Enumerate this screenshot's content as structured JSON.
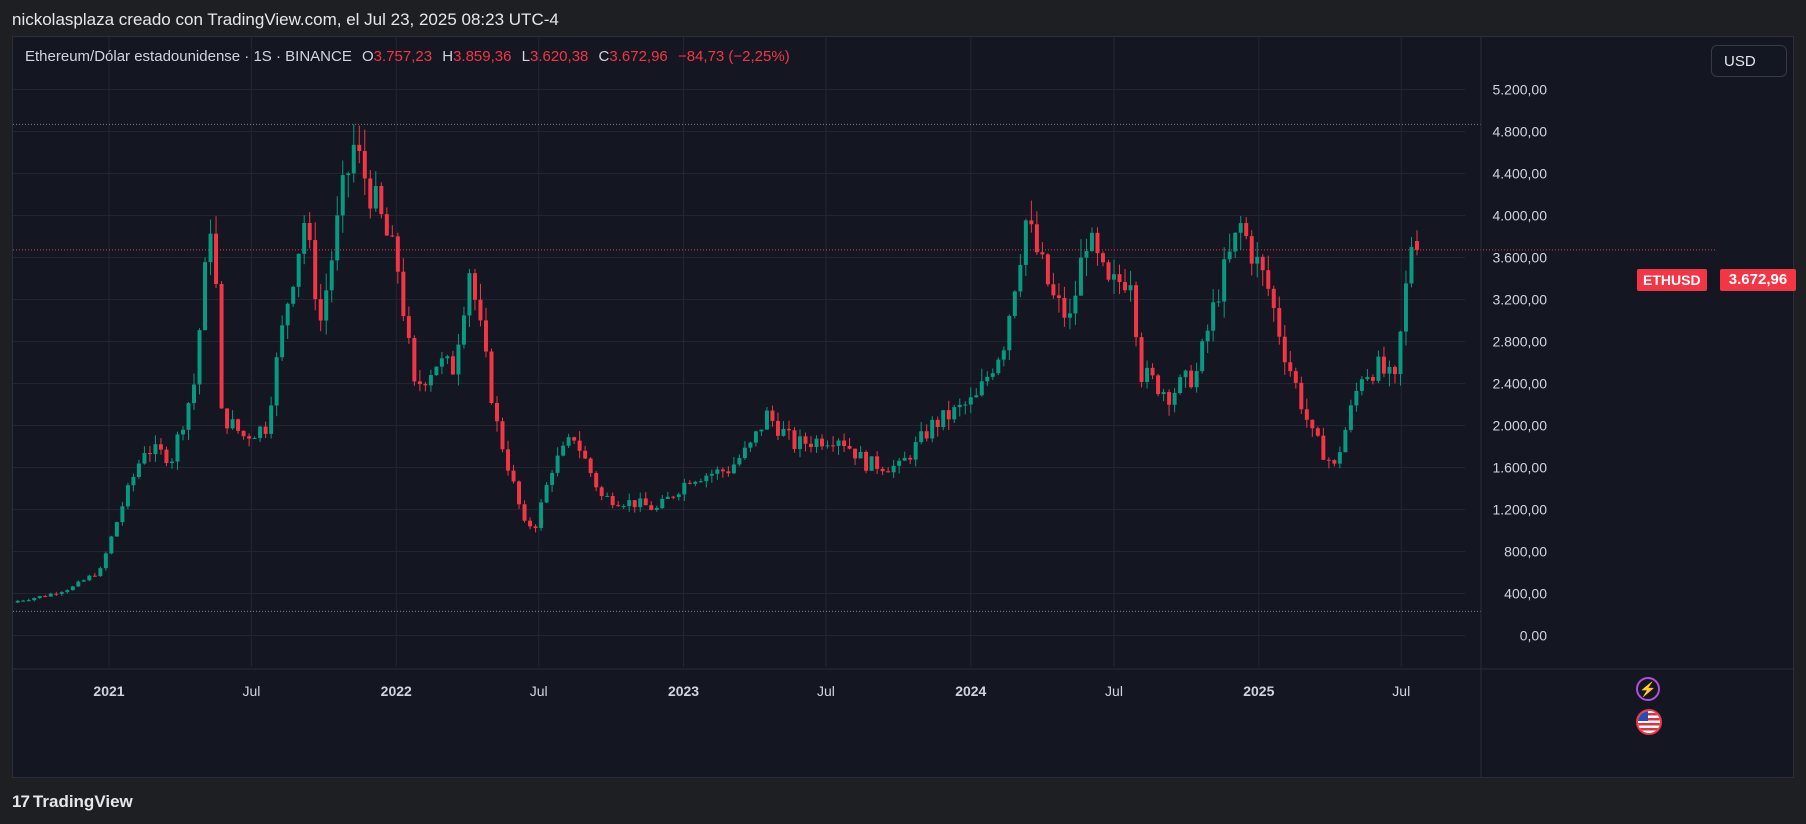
{
  "header": {
    "caption": "nickolasplaza creado con TradingView.com, el Jul 23, 2025 08:23 UTC-4"
  },
  "legend": {
    "symbol": "Ethereum/Dólar estadounidense · 1S · BINANCE",
    "open_key": "O",
    "open": "3.757,23",
    "high_key": "H",
    "high": "3.859,36",
    "low_key": "L",
    "low": "3.620,38",
    "close_key": "C",
    "close": "3.672,96",
    "change": "−84,73 (−2,25%)"
  },
  "currency_button": "USD",
  "price_tag": {
    "ticker": "ETHUSD",
    "value": "3.672,96"
  },
  "footer": {
    "logo": "17",
    "brand": "TradingView"
  },
  "icons": {
    "alert": "bolt-icon",
    "event": "us-flag-icon"
  },
  "colors": {
    "background": "#141722",
    "up": "#089981",
    "down": "#f23645",
    "grid": "#232632",
    "axis_text": "#d1d4dc",
    "accent_purple": "#b14fe0"
  },
  "chart_data": {
    "type": "candlestick",
    "title": "Ethereum/Dólar estadounidense · 1S · BINANCE",
    "xlabel": "",
    "ylabel": "",
    "ylim": [
      -300,
      5700
    ],
    "y_ticks": [
      "5.200,00",
      "4.800,00",
      "4.400,00",
      "4.000,00",
      "3.600,00",
      "3.200,00",
      "2.800,00",
      "2.400,00",
      "2.000,00",
      "1.600,00",
      "1.200,00",
      "800,00",
      "400,00",
      "0,00"
    ],
    "y_tick_values": [
      5200,
      4800,
      4400,
      4000,
      3600,
      3200,
      2800,
      2400,
      2000,
      1600,
      1200,
      800,
      400,
      0
    ],
    "x_ticks": [
      "2021",
      "Jul",
      "2022",
      "Jul",
      "2023",
      "Jul",
      "2024",
      "Jul",
      "2025",
      "Jul"
    ],
    "x_tick_dates": [
      "2021-01-01",
      "2021-07-01",
      "2022-01-01",
      "2022-07-01",
      "2023-01-01",
      "2023-07-01",
      "2024-01-01",
      "2024-07-01",
      "2025-01-01",
      "2025-07-01"
    ],
    "x_range": [
      "2020-09-01",
      "2025-09-20"
    ],
    "reference_lines": [
      4868,
      230
    ],
    "last_price": 3672.96,
    "grid": true,
    "series": [
      {
        "close_path": [
          [
            "2020-09-07",
            330
          ],
          [
            "2020-10-12",
            380
          ],
          [
            "2020-11-16",
            460
          ],
          [
            "2020-12-21",
            620
          ],
          [
            "2021-01-18",
            1240
          ],
          [
            "2021-02-15",
            1780
          ],
          [
            "2021-03-22",
            1700
          ],
          [
            "2021-04-19",
            2400
          ],
          [
            "2021-05-10",
            3950
          ],
          [
            "2021-05-17",
            3300
          ],
          [
            "2021-05-24",
            2100
          ],
          [
            "2021-06-21",
            1900
          ],
          [
            "2021-07-19",
            1990
          ],
          [
            "2021-08-16",
            3200
          ],
          [
            "2021-09-06",
            3950
          ],
          [
            "2021-09-27",
            3000
          ],
          [
            "2021-10-25",
            4200
          ],
          [
            "2021-11-08",
            4650
          ],
          [
            "2021-12-06",
            4100
          ],
          [
            "2022-01-03",
            3500
          ],
          [
            "2022-01-24",
            2350
          ],
          [
            "2022-02-21",
            2600
          ],
          [
            "2022-03-14",
            2550
          ],
          [
            "2022-04-04",
            3500
          ],
          [
            "2022-05-09",
            2000
          ],
          [
            "2022-06-13",
            1050
          ],
          [
            "2022-06-27",
            1060
          ],
          [
            "2022-07-18",
            1600
          ],
          [
            "2022-08-15",
            1900
          ],
          [
            "2022-09-19",
            1320
          ],
          [
            "2022-11-07",
            1250
          ],
          [
            "2022-11-28",
            1200
          ],
          [
            "2023-01-09",
            1500
          ],
          [
            "2023-02-27",
            1580
          ],
          [
            "2023-03-27",
            1800
          ],
          [
            "2023-04-17",
            2100
          ],
          [
            "2023-05-22",
            1820
          ],
          [
            "2023-07-17",
            1900
          ],
          [
            "2023-08-21",
            1640
          ],
          [
            "2023-10-02",
            1600
          ],
          [
            "2023-11-13",
            2000
          ],
          [
            "2024-01-08",
            2250
          ],
          [
            "2024-02-12",
            2800
          ],
          [
            "2024-03-11",
            3950
          ],
          [
            "2024-04-15",
            3200
          ],
          [
            "2024-05-06",
            3000
          ],
          [
            "2024-05-27",
            3800
          ],
          [
            "2024-06-24",
            3300
          ],
          [
            "2024-07-22",
            3450
          ],
          [
            "2024-08-05",
            2500
          ],
          [
            "2024-09-09",
            2300
          ],
          [
            "2024-10-14",
            2500
          ],
          [
            "2024-11-11",
            3300
          ],
          [
            "2024-12-09",
            3900
          ],
          [
            "2025-01-13",
            3300
          ],
          [
            "2025-02-03",
            2700
          ],
          [
            "2025-03-10",
            1900
          ],
          [
            "2025-04-07",
            1600
          ],
          [
            "2025-05-12",
            2500
          ],
          [
            "2025-06-02",
            2550
          ],
          [
            "2025-06-23",
            2400
          ],
          [
            "2025-07-14",
            3750
          ],
          [
            "2025-07-21",
            3672.96
          ]
        ],
        "high_peak": [
          "2021-11-08",
          4868
        ],
        "last_candle": {
          "date": "2025-07-21",
          "open": 3757.23,
          "high": 3859.36,
          "low": 3620.38,
          "close": 3672.96
        }
      }
    ]
  }
}
